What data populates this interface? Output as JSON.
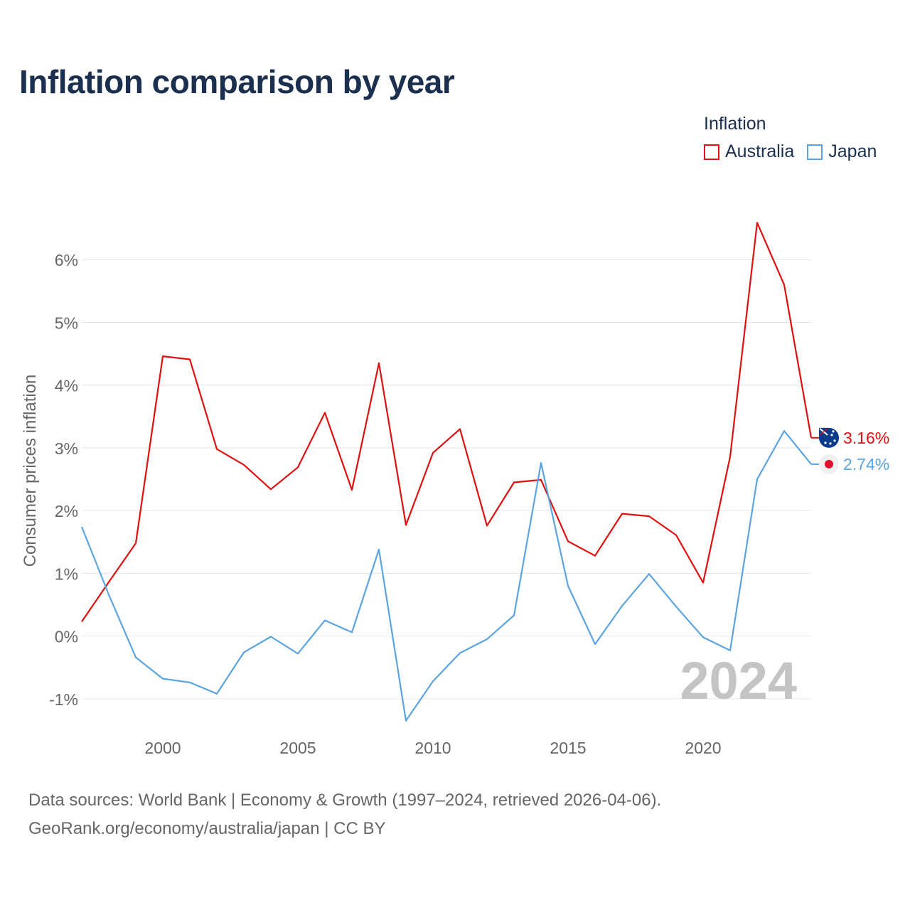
{
  "title": "Inflation comparison by year",
  "legend": {
    "title": "Inflation",
    "items": [
      {
        "label": "Australia",
        "color": "#e01010"
      },
      {
        "label": "Japan",
        "color": "#5ba4e2"
      }
    ]
  },
  "footer": {
    "line1": "Data sources: World Bank | Economy & Growth (1997–2024, retrieved 2026-04-06).",
    "line2": "GeoRank.org/economy/australia/japan | CC BY"
  },
  "chart_data": {
    "type": "line",
    "title": "Inflation comparison by year",
    "xlabel": "",
    "ylabel": "Consumer prices inflation",
    "xlim": [
      1997,
      2024
    ],
    "ylim": [
      -1.5,
      7
    ],
    "y_ticks": [
      -1,
      0,
      1,
      2,
      3,
      4,
      5,
      6
    ],
    "y_tick_labels": [
      "-1%",
      "0%",
      "1%",
      "2%",
      "3%",
      "4%",
      "5%",
      "6%"
    ],
    "x_ticks": [
      2000,
      2005,
      2010,
      2015,
      2020
    ],
    "x_tick_labels": [
      "2000",
      "2005",
      "2010",
      "2015",
      "2020"
    ],
    "grid": true,
    "year_label": "2024",
    "x": [
      1997,
      1998,
      1999,
      2000,
      2001,
      2002,
      2003,
      2004,
      2005,
      2006,
      2007,
      2008,
      2009,
      2010,
      2011,
      2012,
      2013,
      2014,
      2015,
      2016,
      2017,
      2018,
      2019,
      2020,
      2021,
      2022,
      2023,
      2024
    ],
    "series": [
      {
        "name": "Australia",
        "color": "#e01010",
        "end_label": "3.16%",
        "values": [
          0.23,
          0.86,
          1.48,
          4.46,
          4.41,
          2.98,
          2.73,
          2.34,
          2.69,
          3.56,
          2.33,
          4.35,
          1.77,
          2.92,
          3.3,
          1.76,
          2.45,
          2.49,
          1.51,
          1.28,
          1.95,
          1.91,
          1.61,
          0.85,
          2.86,
          6.59,
          5.6,
          3.16
        ]
      },
      {
        "name": "Japan",
        "color": "#5ba4e2",
        "end_label": "2.74%",
        "values": [
          1.74,
          0.66,
          -0.34,
          -0.68,
          -0.74,
          -0.92,
          -0.26,
          -0.01,
          -0.28,
          0.25,
          0.06,
          1.38,
          -1.35,
          -0.72,
          -0.27,
          -0.05,
          0.33,
          2.76,
          0.8,
          -0.13,
          0.48,
          0.99,
          0.47,
          -0.02,
          -0.23,
          2.5,
          3.27,
          2.74
        ]
      }
    ]
  }
}
